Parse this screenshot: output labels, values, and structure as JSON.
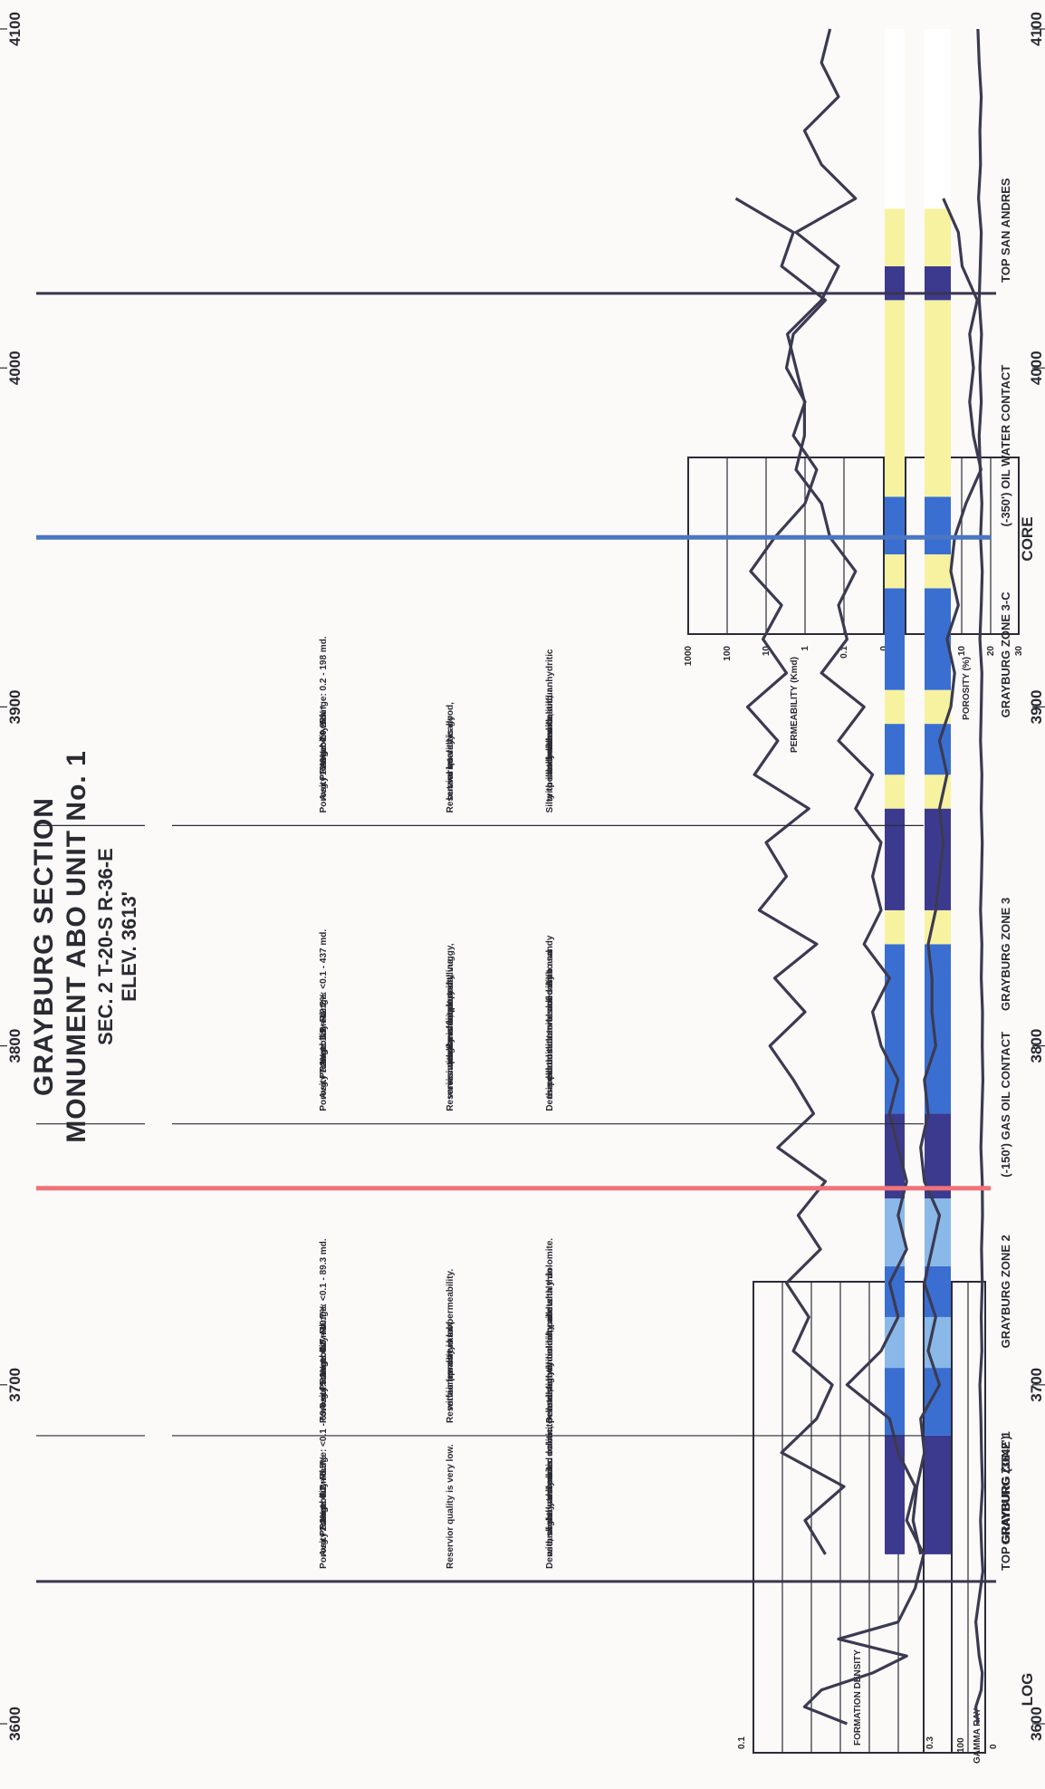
{
  "colors": {
    "gas_oil_contact": "#f0727a",
    "oil_water_contact": "#4a76c4",
    "curve": "#3b3a52",
    "lith_dark": "#3c3a8e",
    "lith_blue": "#3a6fd1",
    "lith_light": "#8ab8e8",
    "lith_yellow": "#f7f2a0"
  },
  "title": {
    "line1": "GRAYBURG SECTION",
    "line2": "MONUMENT ABO UNIT No. 1",
    "line3": "SEC. 2  T-20-S   R-36-E",
    "line4": "ELEV. 3613'"
  },
  "section_headers": {
    "log": "LOG",
    "core": "CORE"
  },
  "tracks": {
    "gamma_ray": {
      "label": "GAMMA RAY",
      "scale_min": "0",
      "scale_max": "100"
    },
    "formation_density": {
      "label": "FORMATION DENSITY",
      "scale_left": "0.3",
      "scale_right": "0.1"
    },
    "porosity": {
      "label": "POROSITY (%)",
      "ticks": [
        "30",
        "20",
        "10",
        "0"
      ]
    },
    "permeability": {
      "label": "PERMEABILITY (Kmd)",
      "ticks": [
        "0",
        "0.1",
        "1",
        "10",
        "100",
        "1000"
      ]
    }
  },
  "depth_ticks": [
    "3600",
    "3700",
    "3800",
    "3900",
    "4000",
    "4100"
  ],
  "markers": {
    "top_grayburg": "TOP GRAYBURG (3642')",
    "gas_oil_contact": "(-150') GAS OIL CONTACT",
    "oil_water_contact": "(-350') OIL WATER CONTACT",
    "top_san_andres": "TOP SAN ANDRES"
  },
  "zones": [
    "GRAYBURG  ZONE 1",
    "GRAYBURG  ZONE 2",
    "GRAYBURG  ZONE 3",
    "GRAYBURG  ZONE 3-C"
  ],
  "lithology_text": [
    [
      "Dense, slightly anhydritic dolomite",
      "with some interbedded oolitic, pelletal,",
      "and shaly dolomite."
    ],
    [
      "Dense slightly oolitic, pelletal",
      "and anhydritic dolomite with thin",
      "interbedded silty and shaly dolomite."
    ],
    [
      "Dense dolomite interbedded with",
      "thin porous intervals of oolitic and",
      "pelletal dolomite and silty to sandy",
      "dolomite."
    ],
    [
      "Silty to sandy dolomite",
      "with interbedded oolitic,",
      "pelletal dolomite, and anhydritic",
      "dolomite with sulfur."
    ]
  ],
  "reservoir_text": [
    [
      "Reservior quality is very low."
    ],
    [
      "Reservior quality is low",
      "with a few streaks of",
      "fair porosity and permeability."
    ],
    [
      "Reservior quality is fair, but",
      "varies with the amount and",
      "occurrence of intercrystalline,",
      "intergranular, pinpoint, vuggy,",
      "and moldic porosity."
    ],
    [
      "Reservior quality is good,",
      "but varies vertically",
      "and laterally."
    ]
  ],
  "stats_text": [
    {
      "por_label": "Porosity",
      "por_range": "Range: 0.2 - 6.5%",
      "por_avg": "Avg.: 2.1% *",
      "perm_label": "Permeability",
      "perm_range": "Range: <0.1 - 69.8 md.",
      "perm_avg": "Avg.: 0.2 md. *"
    },
    {
      "por_label": "Porosity",
      "por_range": "Range: 0.7 - 10.7%",
      "por_avg": "Avg.: 5.1% *",
      "perm_label": "Permeability",
      "perm_range": "Range: <0.1 - 89.3 md.",
      "perm_avg": "Avg.: 0.8 md. *"
    },
    {
      "por_label": "Porosity",
      "por_range": "Range: 3.0 - 12.2%",
      "por_avg": "Avg.: 7.2% *",
      "perm_label": "Permeability",
      "perm_range": "Range: <0.1 - 437 md.",
      "perm_avg": "Avg.: 1.9 md. *"
    },
    {
      "por_label": "Porosity",
      "por_range": "Range: 2 - 25%",
      "por_avg": "Avg.: 13.3% *",
      "perm_label": "Permeability",
      "perm_range": "Range: 0.2 - 198 md.",
      "perm_avg": "Avg.: 4.0 md. *"
    }
  ],
  "chart_data": {
    "type": "line",
    "x_axis": "depth (ft)",
    "depth_range": [
      3600,
      4100
    ],
    "boundaries": {
      "top_grayburg": 3642,
      "zone1_2": 3685,
      "gas_oil_contact": 3758,
      "zone2_3": 3777,
      "zone3_3c": 3865,
      "oil_water_contact": 3950,
      "top_san_andres": 4022
    },
    "gamma_ray": {
      "depth": [
        3600,
        3605,
        3610,
        3615,
        3620,
        3630,
        3640,
        3645,
        3650,
        3660,
        3670,
        3680,
        3690,
        3700,
        3710,
        3720,
        3730,
        3740,
        3750,
        3760,
        3770,
        3780,
        3790,
        3800,
        3810,
        3820,
        3830,
        3840,
        3850,
        3860,
        3870,
        3880,
        3890,
        3900,
        3910,
        3920,
        3930,
        3940,
        3950,
        3960,
        3970,
        3980,
        3990,
        4000,
        4010,
        4020,
        4030,
        4040,
        4050,
        4060,
        4070,
        4080,
        4090,
        4100
      ],
      "value": [
        22,
        28,
        12,
        9,
        18,
        28,
        14,
        7,
        10,
        14,
        8,
        11,
        13,
        16,
        10,
        12,
        9,
        11,
        8,
        9,
        13,
        10,
        7,
        9,
        8,
        12,
        10,
        14,
        11,
        9,
        12,
        10,
        14,
        12,
        10,
        16,
        12,
        9,
        14,
        10,
        15,
        18,
        12,
        16,
        11,
        18,
        15,
        12,
        20,
        14,
        16,
        12,
        18,
        22
      ]
    },
    "formation_density": {
      "depth": [
        3600,
        3605,
        3610,
        3615,
        3620,
        3625,
        3630,
        3640,
        3650,
        3660,
        3670,
        3680,
        3690,
        3700,
        3710,
        3720,
        3730,
        3740,
        3750,
        3760,
        3770,
        3780,
        3790,
        3800,
        3810,
        3820,
        3830,
        3840,
        3850,
        3860,
        3870,
        3880,
        3890,
        3900,
        3910,
        3920,
        3930,
        3940,
        3950,
        3960,
        3970,
        3980,
        3990,
        4000,
        4010,
        4020,
        4030,
        4040,
        4050,
        4060,
        4070,
        4080,
        4090,
        4100
      ],
      "value": [
        0.19,
        0.24,
        0.22,
        0.16,
        0.12,
        0.2,
        0.13,
        0.11,
        0.1,
        0.12,
        0.11,
        0.13,
        0.14,
        0.19,
        0.15,
        0.13,
        0.14,
        0.12,
        0.13,
        0.12,
        0.13,
        0.14,
        0.13,
        0.15,
        0.16,
        0.14,
        0.17,
        0.15,
        0.16,
        0.15,
        0.18,
        0.16,
        0.2,
        0.17,
        0.22,
        0.19,
        0.2,
        0.18,
        0.21,
        0.22,
        0.25,
        0.24,
        0.24,
        0.25,
        0.26,
        0.22,
        0.2,
        0.25,
        0.18,
        0.22,
        0.24,
        0.2,
        0.22,
        0.21
      ]
    },
    "porosity": {
      "depth": [
        3650,
        3660,
        3670,
        3680,
        3690,
        3700,
        3710,
        3720,
        3730,
        3740,
        3750,
        3760,
        3770,
        3780,
        3790,
        3800,
        3810,
        3820,
        3830,
        3840,
        3850,
        3860,
        3870,
        3880,
        3890,
        3900,
        3910,
        3920,
        3930,
        3940,
        3950,
        3960,
        3970,
        3980,
        3990,
        4000,
        4010,
        4020,
        4030,
        4040,
        4050
      ],
      "value": [
        4,
        2,
        3,
        5,
        4,
        9,
        6,
        8,
        5,
        7,
        9,
        5,
        4,
        6,
        5,
        8,
        7,
        7,
        6,
        8,
        9,
        10,
        9,
        11,
        9,
        12,
        13,
        11,
        14,
        12,
        13,
        16,
        20,
        18,
        17,
        18,
        17,
        19,
        15,
        14,
        10
      ]
    },
    "permeability": {
      "depth": [
        3650,
        3660,
        3670,
        3680,
        3690,
        3700,
        3710,
        3720,
        3730,
        3740,
        3750,
        3760,
        3770,
        3780,
        3790,
        3800,
        3810,
        3820,
        3830,
        3840,
        3850,
        3860,
        3870,
        3880,
        3890,
        3900,
        3910,
        3920,
        3930,
        3940,
        3950,
        3960,
        3970,
        3980,
        3990,
        4000,
        4010,
        4020,
        4030,
        4040,
        4050
      ],
      "value": [
        0.3,
        1,
        0.1,
        4,
        0.5,
        0.2,
        2,
        0.8,
        3,
        0.4,
        1.5,
        0.3,
        5,
        0.6,
        2,
        8,
        1,
        6,
        0.5,
        15,
        3,
        10,
        0.8,
        20,
        5,
        30,
        3,
        12,
        4,
        25,
        6,
        1,
        0.5,
        2,
        1,
        3,
        2,
        0.3,
        4,
        2,
        60
      ]
    },
    "lithology_columns": {
      "legend_classes": [
        "dark",
        "blue",
        "light",
        "yellow",
        "white"
      ],
      "intervals": [
        {
          "from": 3650,
          "to": 3685,
          "class": "dark"
        },
        {
          "from": 3685,
          "to": 3705,
          "class": "blue"
        },
        {
          "from": 3705,
          "to": 3720,
          "class": "light"
        },
        {
          "from": 3720,
          "to": 3735,
          "class": "blue"
        },
        {
          "from": 3735,
          "to": 3755,
          "class": "light"
        },
        {
          "from": 3755,
          "to": 3780,
          "class": "dark"
        },
        {
          "from": 3780,
          "to": 3830,
          "class": "blue"
        },
        {
          "from": 3830,
          "to": 3840,
          "class": "yellow"
        },
        {
          "from": 3840,
          "to": 3870,
          "class": "dark"
        },
        {
          "from": 3870,
          "to": 3880,
          "class": "yellow"
        },
        {
          "from": 3880,
          "to": 3895,
          "class": "blue"
        },
        {
          "from": 3895,
          "to": 3905,
          "class": "yellow"
        },
        {
          "from": 3905,
          "to": 3935,
          "class": "blue"
        },
        {
          "from": 3935,
          "to": 3945,
          "class": "yellow"
        },
        {
          "from": 3945,
          "to": 3962,
          "class": "blue"
        },
        {
          "from": 3962,
          "to": 4020,
          "class": "yellow"
        },
        {
          "from": 4020,
          "to": 4030,
          "class": "dark"
        },
        {
          "from": 4030,
          "to": 4047,
          "class": "yellow"
        },
        {
          "from": 4047,
          "to": 4100,
          "class": "white"
        }
      ]
    }
  }
}
